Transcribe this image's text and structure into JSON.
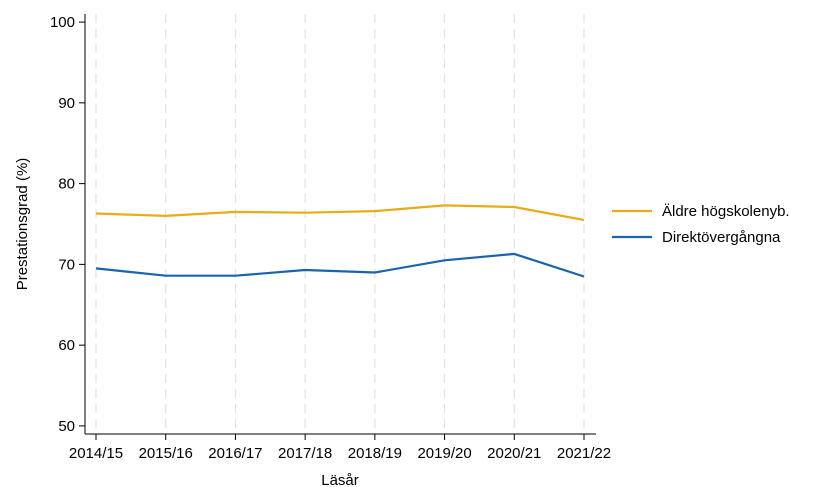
{
  "chart_data": {
    "type": "line",
    "xlabel": "Läsår",
    "ylabel": "Prestationsgrad (%)",
    "categories": [
      "2014/15",
      "2015/16",
      "2016/17",
      "2017/18",
      "2018/19",
      "2019/20",
      "2020/21",
      "2021/22"
    ],
    "ylim": [
      49,
      101
    ],
    "yticks": [
      50,
      60,
      70,
      80,
      90,
      100
    ],
    "grid": "vertical-dashed",
    "legend_position": "right",
    "series": [
      {
        "name": "Äldre högskolenyb.",
        "color": "#e8ab1a",
        "values": [
          76.3,
          76.0,
          76.5,
          76.4,
          76.6,
          77.3,
          77.1,
          75.5
        ]
      },
      {
        "name": "Direktövergångna",
        "color": "#1a64ad",
        "values": [
          69.5,
          68.6,
          68.6,
          69.3,
          69.0,
          70.5,
          71.3,
          68.5
        ]
      }
    ]
  }
}
